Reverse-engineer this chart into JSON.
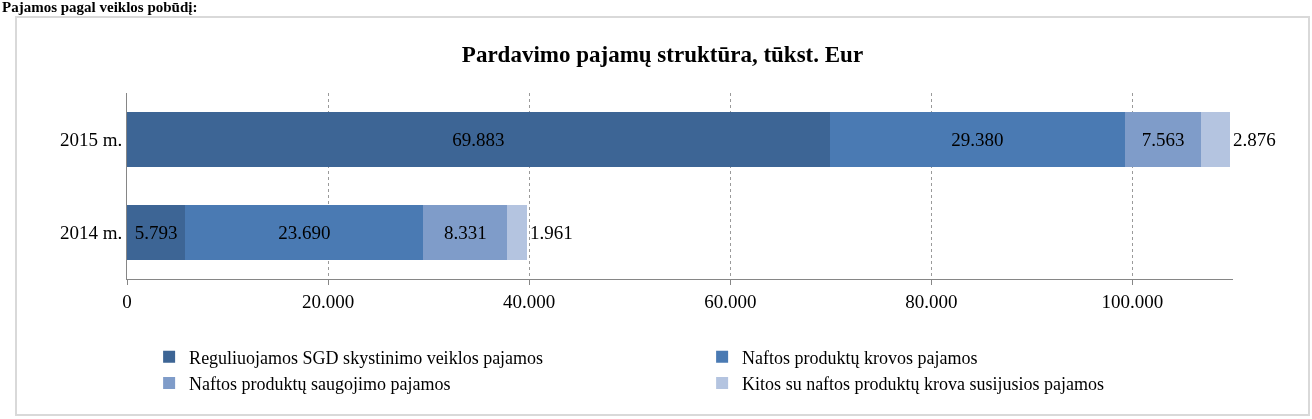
{
  "chart_data": {
    "type": "bar",
    "orientation": "horizontal",
    "stacked": true,
    "title": "Pardavimo pajamų struktūra, tūkst. Eur",
    "annotations": [
      "Pajamos pagal veiklos pobūdį:"
    ],
    "categories": [
      "2015 m.",
      "2014 m."
    ],
    "series": [
      {
        "name": "Reguliuojamos SGD skystinimo veiklos pajamos",
        "color": "#3d6595",
        "values": [
          69883,
          5793
        ],
        "value_labels": [
          "69.883",
          "5.793"
        ]
      },
      {
        "name": "Naftos produktų krovos pajamos",
        "color": "#4a7ab3",
        "values": [
          29380,
          23690
        ],
        "value_labels": [
          "29.380",
          "23.690"
        ]
      },
      {
        "name": "Naftos produktų saugojimo pajamos",
        "color": "#7f9cc9",
        "values": [
          7563,
          8331
        ],
        "value_labels": [
          "7.563",
          "8.331"
        ]
      },
      {
        "name": "Kitos su naftos produktų krova susijusios pajamos",
        "color": "#b4c4e0",
        "values": [
          2876,
          1961
        ],
        "value_labels": [
          "2.876",
          "1.961"
        ]
      }
    ],
    "xlim": [
      0,
      110000
    ],
    "xticks": [
      0,
      {
        "value": 20000,
        "label": "20.000"
      },
      {
        "value": 40000,
        "label": "40.000"
      },
      {
        "value": 60000,
        "label": "60.000"
      },
      {
        "value": 80000,
        "label": "80.000"
      },
      {
        "value": 100000,
        "label": "100.000"
      }
    ],
    "grid": "x",
    "legend": "bottom"
  }
}
